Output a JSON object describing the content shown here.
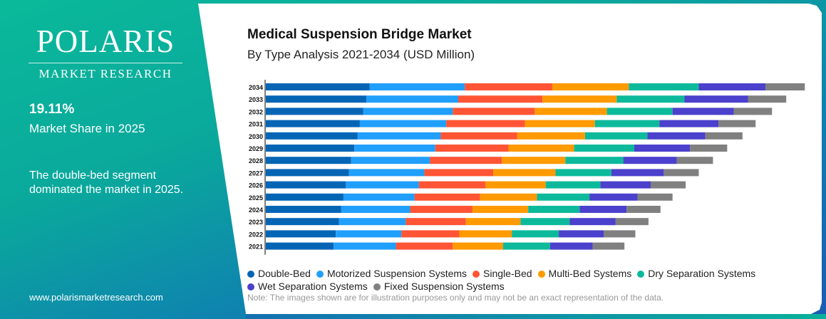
{
  "brand": {
    "name": "POLARIS",
    "tagline": "MARKET RESEARCH",
    "url": "www.polarismarketresearch.com"
  },
  "highlight": {
    "value": "19.11%",
    "label": "Market Share in 2025",
    "description": "The double-bed segment dominated the market in 2025."
  },
  "note": "Note: The images shown are for illustration purposes only and may not be an exact representation of the data.",
  "chart_data": {
    "type": "bar",
    "orientation": "horizontal",
    "stacked": true,
    "title": "Medical Suspension Bridge Market",
    "subtitle": "By Type Analysis 2021-2034 (USD Million)",
    "legend_position": "bottom",
    "grid": false,
    "categories": [
      "2034",
      "2033",
      "2032",
      "2031",
      "2030",
      "2029",
      "2028",
      "2027",
      "2026",
      "2025",
      "2024",
      "2023",
      "2022",
      "2021"
    ],
    "series": [
      {
        "name": "Double-Bed",
        "color": "#0565b5",
        "values": [
          95,
          92,
          89,
          86,
          84,
          81,
          78,
          76,
          73,
          71,
          69,
          67,
          64,
          62
        ]
      },
      {
        "name": "Motorized Suspension Systems",
        "color": "#219ffc",
        "values": [
          87,
          84,
          82,
          79,
          76,
          74,
          72,
          69,
          67,
          65,
          63,
          61,
          60,
          57
        ]
      },
      {
        "name": "Single-Bed",
        "color": "#ff5535",
        "values": [
          80,
          77,
          75,
          72,
          70,
          67,
          66,
          63,
          61,
          60,
          57,
          55,
          53,
          52
        ]
      },
      {
        "name": "Multi-Bed Systems",
        "color": "#ff9a00",
        "values": [
          70,
          68,
          66,
          64,
          62,
          60,
          58,
          57,
          55,
          52,
          51,
          50,
          48,
          46
        ]
      },
      {
        "name": "Dry Separation Systems",
        "color": "#0cba9b",
        "values": [
          64,
          62,
          60,
          59,
          57,
          55,
          53,
          51,
          50,
          48,
          47,
          45,
          43,
          43
        ]
      },
      {
        "name": "Wet Separation Systems",
        "color": "#4b41cc",
        "values": [
          61,
          58,
          56,
          54,
          53,
          51,
          49,
          48,
          46,
          44,
          43,
          42,
          41,
          39
        ]
      },
      {
        "name": "Fixed Suspension Systems",
        "color": "#808080",
        "values": [
          36,
          35,
          35,
          34,
          34,
          34,
          33,
          32,
          32,
          32,
          31,
          30,
          29,
          29
        ]
      }
    ]
  }
}
